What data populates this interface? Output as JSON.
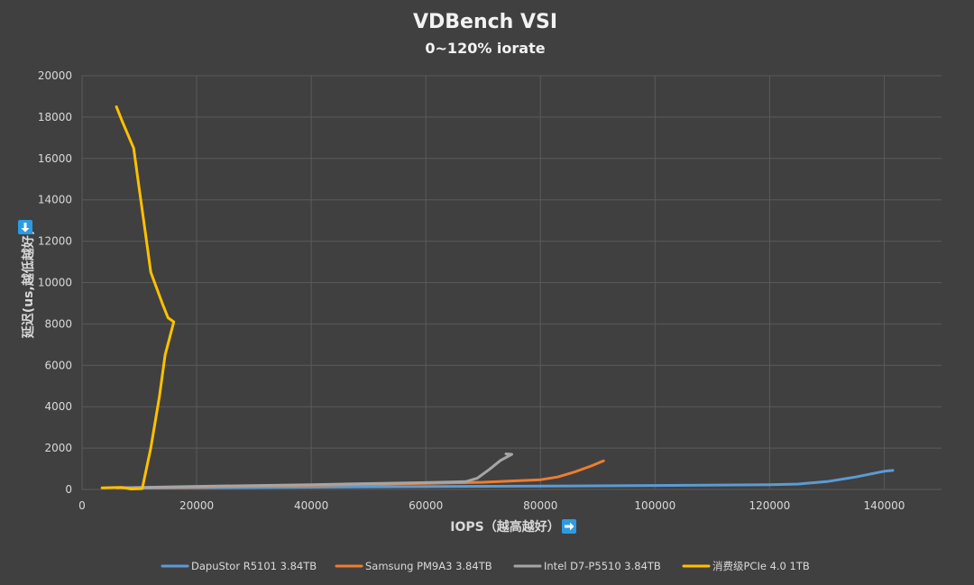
{
  "colors": {
    "background": "#404040",
    "grid": "#5a5a5a",
    "text": "#d9d9d9",
    "title": "#f2f2f2",
    "arrow": "#2b9be4"
  },
  "icons": {
    "x_arrow": "arrow-right-icon",
    "y_arrow": "arrow-down-icon"
  },
  "chart_data": {
    "type": "line",
    "title": "VDBench VSI",
    "subtitle": "0~120% iorate",
    "xlabel": "IOPS（越高越好）",
    "ylabel": "延迟(us,越低越好)",
    "xlim": [
      0,
      150000
    ],
    "ylim": [
      0,
      20000
    ],
    "xticks": [
      0,
      20000,
      40000,
      60000,
      80000,
      100000,
      120000,
      140000
    ],
    "yticks": [
      0,
      2000,
      4000,
      6000,
      8000,
      10000,
      12000,
      14000,
      16000,
      18000,
      20000
    ],
    "grid": true,
    "legend_position": "bottom",
    "series": [
      {
        "name": "DapuStor R5101 3.84TB",
        "color": "#5b9bd5",
        "points": [
          [
            8000,
            60
          ],
          [
            20000,
            80
          ],
          [
            40000,
            110
          ],
          [
            60000,
            140
          ],
          [
            80000,
            160
          ],
          [
            100000,
            190
          ],
          [
            120000,
            230
          ],
          [
            125000,
            260
          ],
          [
            130000,
            380
          ],
          [
            135000,
            600
          ],
          [
            140000,
            880
          ],
          [
            141500,
            920
          ]
        ]
      },
      {
        "name": "Samsung PM9A3 3.84TB",
        "color": "#ed7d31",
        "points": [
          [
            7000,
            70
          ],
          [
            20000,
            120
          ],
          [
            40000,
            200
          ],
          [
            60000,
            290
          ],
          [
            70000,
            350
          ],
          [
            80000,
            470
          ],
          [
            83000,
            600
          ],
          [
            86000,
            850
          ],
          [
            89000,
            1150
          ],
          [
            91000,
            1380
          ]
        ]
      },
      {
        "name": "Intel D7-P5510 3.84TB",
        "color": "#a5a5a5",
        "points": [
          [
            6000,
            80
          ],
          [
            20000,
            150
          ],
          [
            40000,
            230
          ],
          [
            60000,
            330
          ],
          [
            67000,
            380
          ],
          [
            69000,
            550
          ],
          [
            71000,
            950
          ],
          [
            73000,
            1400
          ],
          [
            75000,
            1700
          ],
          [
            74000,
            1720
          ]
        ]
      },
      {
        "name": "消费级PCIe 4.0 1TB",
        "color": "#ffc000",
        "points": [
          [
            3500,
            80
          ],
          [
            7000,
            100
          ],
          [
            8500,
            20
          ],
          [
            10500,
            40
          ],
          [
            12000,
            2000
          ],
          [
            13500,
            4500
          ],
          [
            14500,
            6500
          ],
          [
            16000,
            8100
          ],
          [
            15000,
            8300
          ],
          [
            14000,
            9000
          ],
          [
            12000,
            10500
          ],
          [
            11000,
            12500
          ],
          [
            10000,
            14500
          ],
          [
            9000,
            16500
          ],
          [
            7000,
            17800
          ],
          [
            6000,
            18500
          ]
        ]
      }
    ]
  }
}
